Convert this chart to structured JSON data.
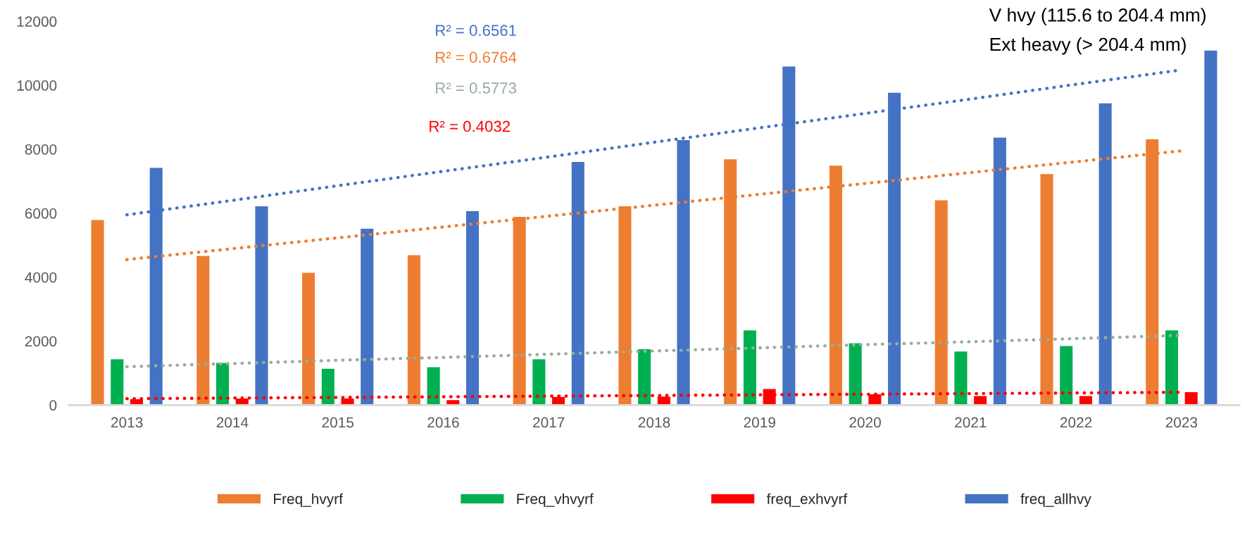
{
  "chart_data": {
    "type": "bar",
    "categories": [
      "2013",
      "2014",
      "2015",
      "2016",
      "2017",
      "2018",
      "2019",
      "2020",
      "2021",
      "2022",
      "2023"
    ],
    "series": [
      {
        "name": "Freq_hvyrf",
        "color": "#ed7d31",
        "values": [
          5800,
          4680,
          4150,
          4700,
          5900,
          6230,
          7700,
          7500,
          6420,
          7240,
          8330
        ]
      },
      {
        "name": "Freq_vhvyrf",
        "color": "#00b050",
        "values": [
          1450,
          1330,
          1150,
          1200,
          1450,
          1760,
          2350,
          1950,
          1690,
          1860,
          2350
        ]
      },
      {
        "name": "freq_exhvyrf",
        "color": "#ff0000",
        "values": [
          200,
          220,
          220,
          170,
          270,
          280,
          520,
          350,
          300,
          300,
          420
        ]
      },
      {
        "name": "freq_allhvy",
        "color": "#4472c4",
        "values": [
          7430,
          6230,
          5530,
          6080,
          7620,
          8300,
          10600,
          9780,
          8380,
          9450,
          11100
        ]
      },
      {
        "type": "line",
        "color": "#4472c4",
        "values": [
          5950,
          6400,
          6860,
          7310,
          7760,
          8220,
          8670,
          9120,
          9570,
          10030,
          10480
        ],
        "line_style": "dotted"
      },
      {
        "type": "line",
        "color": "#ed7d31",
        "values": [
          4550,
          4890,
          5230,
          5570,
          5910,
          6250,
          6590,
          6930,
          7270,
          7610,
          7950
        ],
        "line_style": "dotted"
      },
      {
        "type": "line",
        "color": "#97ad9d",
        "values": [
          1200,
          1300,
          1400,
          1490,
          1590,
          1690,
          1790,
          1890,
          1980,
          2080,
          2180
        ],
        "line_style": "dotted"
      },
      {
        "type": "line",
        "color": "#ff0000",
        "values": [
          200,
          220,
          240,
          260,
          280,
          300,
          320,
          340,
          360,
          380,
          400
        ],
        "line_style": "dotted"
      }
    ],
    "ylim": [
      0,
      12000
    ],
    "yticks": [
      0,
      2000,
      4000,
      6000,
      8000,
      10000,
      12000
    ],
    "annotations": [
      "R² = 0.6561",
      "R² = 0.6764",
      "R² = 0.5773",
      "R² = 0.4032",
      "V hvy (115.6 to 204.4 mm)",
      "Ext heavy (> 204.4 mm)"
    ],
    "legend": "bottom",
    "grid": false
  }
}
